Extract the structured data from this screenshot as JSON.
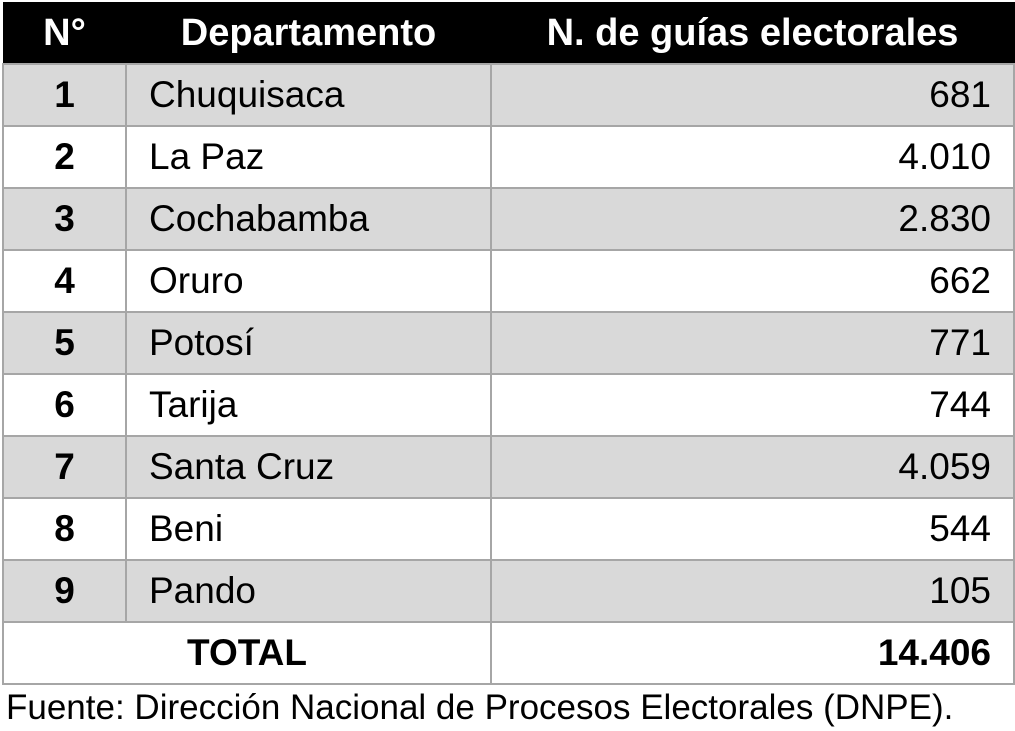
{
  "table": {
    "headers": {
      "number": "N°",
      "department": "Departamento",
      "guides": "N. de guías electorales"
    },
    "rows": [
      {
        "number": "1",
        "department": "Chuquisaca",
        "guides": "681"
      },
      {
        "number": "2",
        "department": "La Paz",
        "guides": "4.010"
      },
      {
        "number": "3",
        "department": "Cochabamba",
        "guides": "2.830"
      },
      {
        "number": "4",
        "department": "Oruro",
        "guides": "662"
      },
      {
        "number": "5",
        "department": "Potosí",
        "guides": "771"
      },
      {
        "number": "6",
        "department": "Tarija",
        "guides": "744"
      },
      {
        "number": "7",
        "department": "Santa Cruz",
        "guides": "4.059"
      },
      {
        "number": "8",
        "department": "Beni",
        "guides": "544"
      },
      {
        "number": "9",
        "department": "Pando",
        "guides": "105"
      }
    ],
    "total": {
      "label": "TOTAL",
      "value": "14.406"
    }
  },
  "source": "Fuente: Dirección Nacional de Procesos Electorales (DNPE).",
  "colors": {
    "header_bg": "#000000",
    "header_text": "#ffffff",
    "alt_row_bg": "#d9d9d9",
    "grid_line": "#a6a6a6"
  }
}
